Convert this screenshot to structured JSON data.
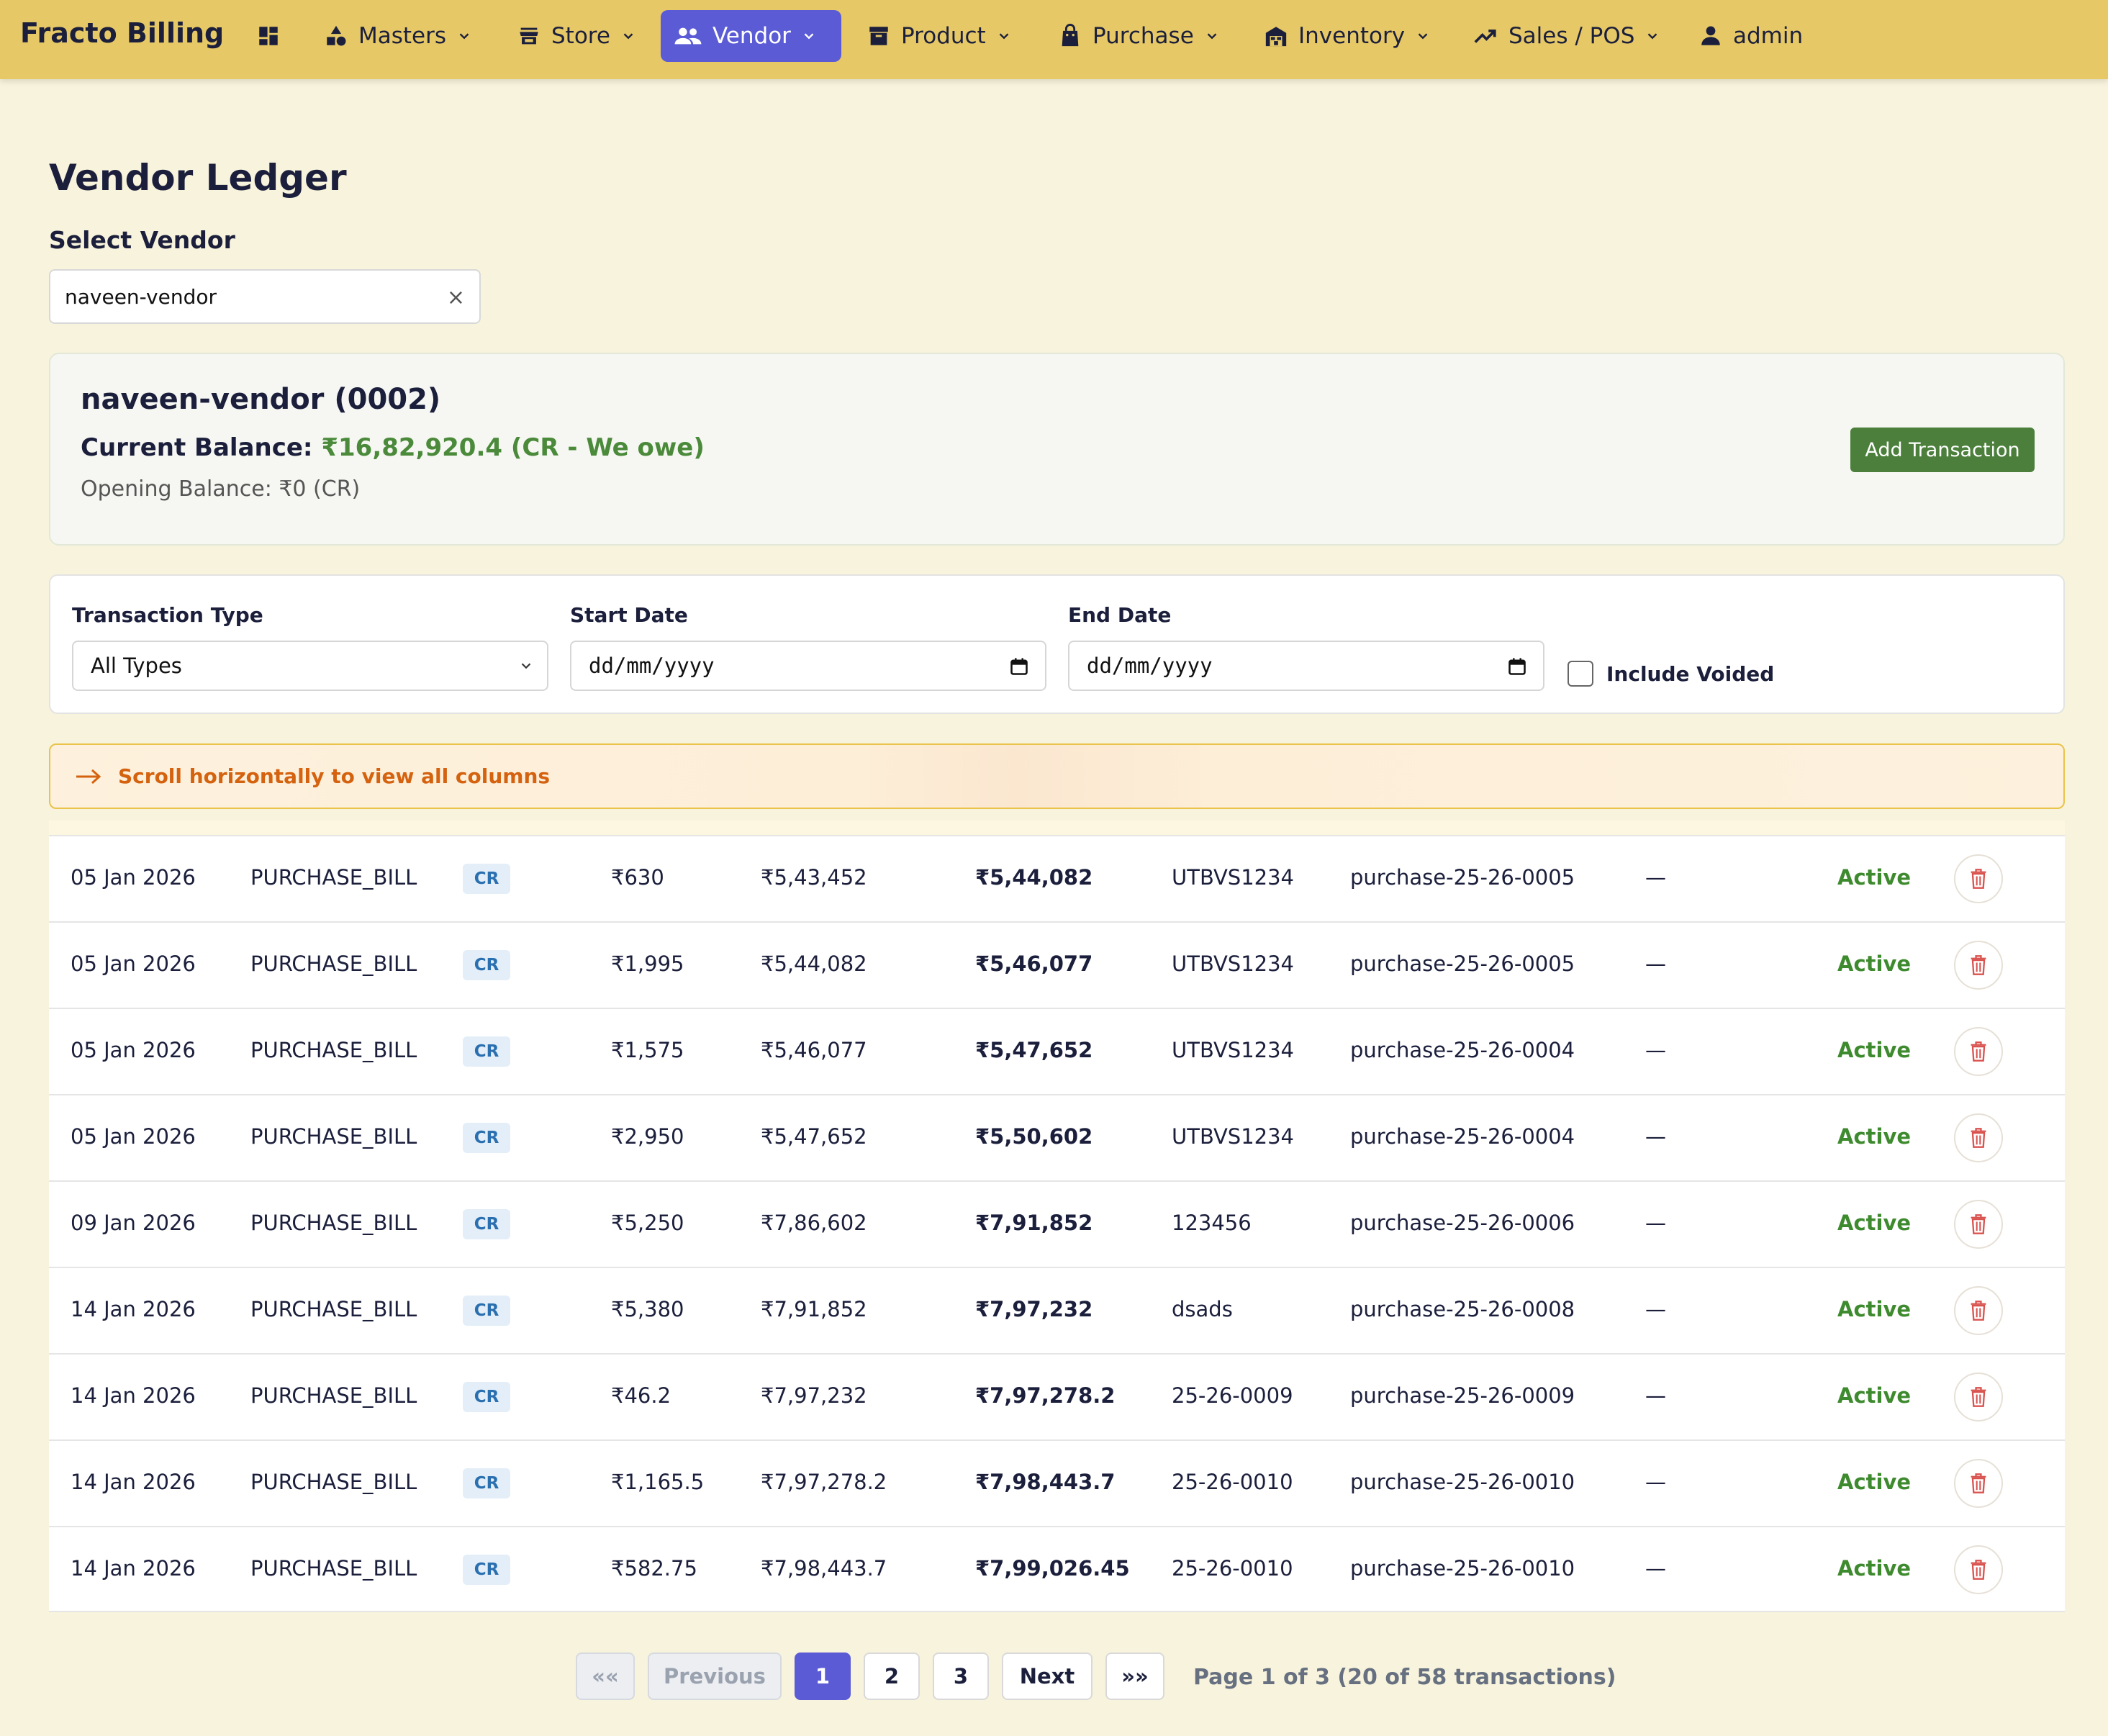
{
  "app": {
    "brand": "Fracto Billing"
  },
  "nav": {
    "masters": "Masters",
    "store": "Store",
    "vendor": "Vendor",
    "product": "Product",
    "purchase": "Purchase",
    "inventory": "Inventory",
    "sales": "Sales / POS",
    "user": "admin"
  },
  "page": {
    "title": "Vendor Ledger",
    "select_label": "Select Vendor",
    "selected_vendor": "naveen-vendor",
    "clear_symbol": "×"
  },
  "vendor_card": {
    "name": "naveen-vendor (0002)",
    "balance_label": "Current Balance: ",
    "balance_value": "₹16,82,920.4 (CR - We owe)",
    "opening_balance": "Opening Balance: ₹0 (CR)",
    "add_button": "Add Transaction"
  },
  "filters": {
    "type_label": "Transaction Type",
    "type_value": "All Types",
    "start_label": "Start Date",
    "start_placeholder": "dd/mm/yyyy",
    "end_label": "End Date",
    "end_placeholder": "dd/mm/yyyy",
    "voided_label": "Include Voided"
  },
  "scroll_hint": "Scroll horizontally to view all columns",
  "rows": [
    {
      "date": "05 Jan 2026",
      "type": "PURCHASE_BILL",
      "dir": "CR",
      "amount": "₹630",
      "before": "₹5,43,452",
      "after": "₹5,44,082",
      "ref": "UTBVS1234",
      "doc": "purchase-25-26-0005",
      "note": "—",
      "status": "Active"
    },
    {
      "date": "05 Jan 2026",
      "type": "PURCHASE_BILL",
      "dir": "CR",
      "amount": "₹1,995",
      "before": "₹5,44,082",
      "after": "₹5,46,077",
      "ref": "UTBVS1234",
      "doc": "purchase-25-26-0005",
      "note": "—",
      "status": "Active"
    },
    {
      "date": "05 Jan 2026",
      "type": "PURCHASE_BILL",
      "dir": "CR",
      "amount": "₹1,575",
      "before": "₹5,46,077",
      "after": "₹5,47,652",
      "ref": "UTBVS1234",
      "doc": "purchase-25-26-0004",
      "note": "—",
      "status": "Active"
    },
    {
      "date": "05 Jan 2026",
      "type": "PURCHASE_BILL",
      "dir": "CR",
      "amount": "₹2,950",
      "before": "₹5,47,652",
      "after": "₹5,50,602",
      "ref": "UTBVS1234",
      "doc": "purchase-25-26-0004",
      "note": "—",
      "status": "Active"
    },
    {
      "date": "09 Jan 2026",
      "type": "PURCHASE_BILL",
      "dir": "CR",
      "amount": "₹5,250",
      "before": "₹7,86,602",
      "after": "₹7,91,852",
      "ref": "123456",
      "doc": "purchase-25-26-0006",
      "note": "—",
      "status": "Active"
    },
    {
      "date": "14 Jan 2026",
      "type": "PURCHASE_BILL",
      "dir": "CR",
      "amount": "₹5,380",
      "before": "₹7,91,852",
      "after": "₹7,97,232",
      "ref": "dsads",
      "doc": "purchase-25-26-0008",
      "note": "—",
      "status": "Active"
    },
    {
      "date": "14 Jan 2026",
      "type": "PURCHASE_BILL",
      "dir": "CR",
      "amount": "₹46.2",
      "before": "₹7,97,232",
      "after": "₹7,97,278.2",
      "ref": "25-26-0009",
      "doc": "purchase-25-26-0009",
      "note": "—",
      "status": "Active"
    },
    {
      "date": "14 Jan 2026",
      "type": "PURCHASE_BILL",
      "dir": "CR",
      "amount": "₹1,165.5",
      "before": "₹7,97,278.2",
      "after": "₹7,98,443.7",
      "ref": "25-26-0010",
      "doc": "purchase-25-26-0010",
      "note": "—",
      "status": "Active"
    },
    {
      "date": "14 Jan 2026",
      "type": "PURCHASE_BILL",
      "dir": "CR",
      "amount": "₹582.75",
      "before": "₹7,98,443.7",
      "after": "₹7,99,026.45",
      "ref": "25-26-0010",
      "doc": "purchase-25-26-0010",
      "note": "—",
      "status": "Active"
    }
  ],
  "pagination": {
    "first": "««",
    "previous": "Previous",
    "pages": [
      "1",
      "2",
      "3"
    ],
    "current_page": "1",
    "next": "Next",
    "last": "»»",
    "info": "Page 1 of 3 (20 of 58 transactions)"
  },
  "icons": {
    "dashboard": "dashboard-icon",
    "masters": "shapes-icon",
    "store": "store-icon",
    "vendor": "people-icon",
    "product": "archive-icon",
    "purchase": "shopping-bag-icon",
    "inventory": "warehouse-icon",
    "sales": "trending-up-icon",
    "user": "person-icon",
    "delete": "trash-icon"
  },
  "colors": {
    "nav_bg": "#e6c867",
    "accent": "#5b5bd6",
    "success": "#4b7f3b",
    "warning_text": "#d4620f",
    "danger": "#d9534f"
  }
}
